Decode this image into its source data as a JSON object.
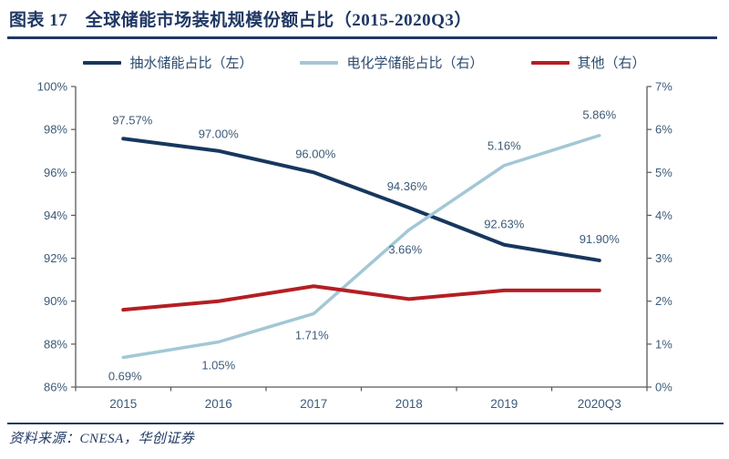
{
  "header": {
    "title": "图表 17　全球储能市场装机规模份额占比（2015-2020Q3）"
  },
  "footer": {
    "source": "资料来源：CNESA，华创证券"
  },
  "colors": {
    "title_text": "#1f3864",
    "rule": "#1f3864",
    "axis_line": "#595959",
    "axis_text": "#3c5a78",
    "data_label_text": "#3c5a78",
    "legend_text": "#2b4a6f"
  },
  "chart_data": {
    "type": "line",
    "title": "全球储能市场装机规模份额占比（2015-2020Q3）",
    "categories": [
      "2015",
      "2016",
      "2017",
      "2018",
      "2019",
      "2020Q3"
    ],
    "left_axis": {
      "min": 86,
      "max": 100,
      "step": 2,
      "tick_labels": [
        "100%",
        "98%",
        "96%",
        "94%",
        "92%",
        "90%",
        "88%",
        "86%"
      ]
    },
    "right_axis": {
      "min": 0,
      "max": 7,
      "step": 1,
      "tick_labels": [
        "7%",
        "6%",
        "5%",
        "4%",
        "3%",
        "2%",
        "1%",
        "0%"
      ]
    },
    "grid": false,
    "legend_position": "top",
    "series": [
      {
        "name": "抽水储能占比（左）",
        "axis": "left",
        "color": "#17375e",
        "width": 4,
        "values": [
          97.57,
          97.0,
          96.0,
          94.36,
          92.63,
          91.9
        ],
        "labels": [
          "97.57%",
          "97.00%",
          "96.00%",
          "94.36%",
          "92.63%",
          "91.90%"
        ],
        "label_dx": [
          10,
          0,
          2,
          -2,
          0,
          0
        ],
        "label_dy": [
          -16,
          -14,
          -16,
          -19,
          -18,
          -19
        ]
      },
      {
        "name": "电化学储能占比（右）",
        "axis": "right",
        "color": "#a3c7d5",
        "width": 3.5,
        "values": [
          0.69,
          1.05,
          1.71,
          3.66,
          5.16,
          5.86
        ],
        "labels": [
          "0.69%",
          "1.05%",
          "1.71%",
          "3.66%",
          "5.16%",
          "5.86%"
        ],
        "label_dx": [
          2,
          0,
          -2,
          -4,
          0,
          0
        ],
        "label_dy": [
          25,
          30,
          28,
          26,
          -17,
          -18
        ]
      },
      {
        "name": "其他（右）",
        "axis": "right",
        "color": "#b41e23",
        "width": 4,
        "values": [
          1.8,
          2.0,
          2.35,
          2.05,
          2.25,
          2.25
        ],
        "labels": [
          "",
          "",
          "",
          "",
          "",
          ""
        ],
        "label_dx": [
          0,
          0,
          0,
          0,
          0,
          0
        ],
        "label_dy": [
          0,
          0,
          0,
          0,
          0,
          0
        ]
      }
    ]
  }
}
